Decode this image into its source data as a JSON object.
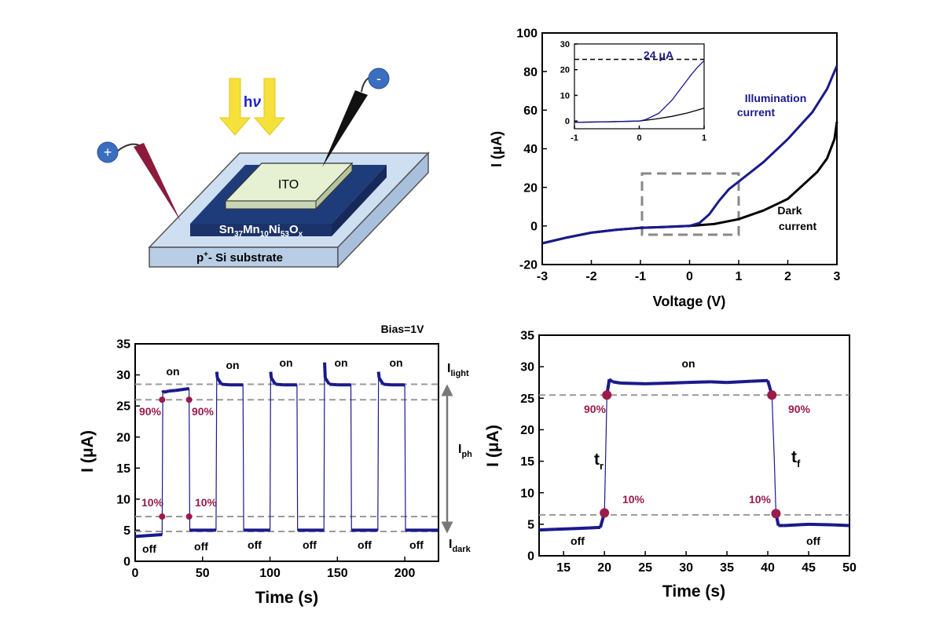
{
  "colors": {
    "dark": "#000000",
    "light": "#1a1a8c",
    "marker": "#9b1b4a",
    "grid": "#999999",
    "ito": "#e6f0d2",
    "film": "#1f3c7a",
    "substrate": "#cfdff2",
    "arrow": "#f5e13c",
    "probe_plus": "#8b1a3c",
    "electrode": "#3a6fc0"
  },
  "schematic": {
    "plus": "+",
    "minus": "-",
    "hv_h": "h",
    "hv_v": "ν",
    "ito": "ITO",
    "film": {
      "p1": "Sn",
      "s1": "37",
      "p2": "Mn",
      "s2": "10",
      "p3": "Ni",
      "s3": "53",
      "p4": "O",
      "s4": "x"
    },
    "substrate_base": "p",
    "substrate_sup": "+",
    "substrate_rest": "- Si substrate"
  },
  "chart_data": [
    {
      "id": "iv",
      "type": "line",
      "xlabel": "Voltage (V)",
      "ylabel": "I (μA)",
      "xlim": [
        -3,
        3
      ],
      "ylim": [
        -20,
        100
      ],
      "xticks": [
        -3,
        -2,
        -1,
        0,
        1,
        2,
        3
      ],
      "yticks": [
        -20,
        0,
        20,
        40,
        60,
        80,
        100
      ],
      "series": [
        {
          "name": "Dark current",
          "x": [
            -3,
            -2.5,
            -2,
            -1.5,
            -1,
            -0.5,
            0,
            0.5,
            1,
            1.5,
            2,
            2.3,
            2.6,
            2.8,
            2.95,
            3
          ],
          "y": [
            -9,
            -6,
            -3.5,
            -2,
            -1,
            -0.5,
            0,
            1,
            3.5,
            8,
            14,
            21,
            28,
            35,
            45,
            54
          ]
        },
        {
          "name": "Illumination current",
          "x": [
            -3,
            -2.5,
            -2,
            -1.5,
            -1,
            -0.5,
            0,
            0.2,
            0.4,
            0.6,
            0.8,
            1,
            1.5,
            2,
            2.5,
            2.8,
            3
          ],
          "y": [
            -9,
            -6,
            -3.5,
            -2,
            -1,
            -0.5,
            0,
            1.5,
            6,
            13,
            19,
            23,
            33,
            45,
            59,
            71,
            83
          ]
        }
      ],
      "labels": {
        "illum_1": "Illumination",
        "illum_2": "current",
        "dark_1": "Dark",
        "dark_2": "current"
      },
      "inset": {
        "xlim": [
          -1,
          1
        ],
        "ylim": [
          -3,
          30
        ],
        "xticks": [
          -1,
          0,
          1
        ],
        "yticks": [
          0,
          10,
          20,
          30
        ],
        "dashed_y": 24,
        "annotation": "24 μA",
        "series": [
          {
            "name": "Dark current",
            "x": [
              -1,
              -0.5,
              0,
              0.25,
              0.5,
              0.75,
              1
            ],
            "y": [
              -0.5,
              -0.3,
              0,
              0.8,
              1.8,
              3.2,
              5
            ]
          },
          {
            "name": "Illumination current",
            "x": [
              -1,
              -0.5,
              0,
              0.1,
              0.3,
              0.5,
              0.65,
              0.8,
              0.9,
              1
            ],
            "y": [
              -0.5,
              -0.3,
              0,
              0.6,
              3,
              8,
              13,
              18,
              21,
              23.5
            ]
          }
        ]
      }
    },
    {
      "id": "cycles",
      "type": "line",
      "xlabel": "Time (s)",
      "ylabel": "I (μA)",
      "xlim": [
        0,
        225
      ],
      "ylim": [
        0,
        35
      ],
      "xticks": [
        0,
        50,
        100,
        150,
        200
      ],
      "yticks": [
        0,
        5,
        10,
        15,
        20,
        25,
        30,
        35
      ],
      "bias": "Bias=1V",
      "series": [
        {
          "name": "Photocurrent",
          "x": [
            0,
            20,
            20.5,
            21,
            25,
            30,
            40,
            40.5,
            60,
            60.5,
            61,
            64,
            70,
            80,
            80.5,
            100,
            100.5,
            101,
            104,
            110,
            120,
            120.5,
            140,
            140.5,
            141,
            144,
            150,
            160,
            160.5,
            180,
            180.5,
            181,
            184,
            190,
            200,
            200.5,
            225
          ],
          "y": [
            4,
            4.3,
            27.5,
            27.2,
            27.4,
            27.5,
            27.8,
            5,
            5,
            30.5,
            29.5,
            28.5,
            28.4,
            28.4,
            5,
            5,
            30.5,
            29.5,
            28.5,
            28.4,
            28.4,
            5,
            5,
            32,
            29.5,
            28.5,
            28.4,
            28.4,
            5,
            5,
            30.5,
            29.5,
            28.5,
            28.4,
            28.4,
            5,
            5
          ]
        }
      ],
      "hlines": [
        28.5,
        26,
        7.2,
        4.8
      ],
      "markers": [
        {
          "x": 20,
          "y": 26
        },
        {
          "x": 20,
          "y": 7.2
        },
        {
          "x": 40,
          "y": 26
        },
        {
          "x": 40,
          "y": 7.2
        }
      ],
      "labels": {
        "on": "on",
        "off": "off",
        "p90": "90%",
        "p10": "10%",
        "I": "I",
        "light": "light",
        "ph": "ph",
        "dark": "dark"
      }
    },
    {
      "id": "zoom",
      "type": "line",
      "xlabel": "Time (s)",
      "ylabel": "I (μA)",
      "xlim": [
        12,
        50
      ],
      "ylim": [
        0,
        35
      ],
      "xticks": [
        15,
        20,
        25,
        30,
        35,
        40,
        45,
        50
      ],
      "yticks": [
        0,
        5,
        10,
        15,
        20,
        25,
        30,
        35
      ],
      "series": [
        {
          "name": "Photocurrent",
          "x": [
            12,
            14,
            16,
            18,
            19.5,
            20,
            20.3,
            20.6,
            21,
            22,
            25,
            28,
            30,
            33,
            35,
            38,
            40,
            40.5,
            40.8,
            41,
            41.3,
            42,
            45,
            48,
            50
          ],
          "y": [
            4.1,
            4.2,
            4.3,
            4.4,
            4.5,
            6.8,
            25.5,
            28,
            27.6,
            27.4,
            27.3,
            27.4,
            27.5,
            27.6,
            27.5,
            27.7,
            27.8,
            25.5,
            15,
            6.7,
            4.8,
            4.8,
            5,
            4.9,
            4.8
          ]
        }
      ],
      "hlines": [
        25.5,
        6.5
      ],
      "markers": [
        {
          "x": 20.3,
          "y": 25.5
        },
        {
          "x": 20,
          "y": 6.8
        },
        {
          "x": 40.5,
          "y": 25.5
        },
        {
          "x": 41,
          "y": 6.7
        }
      ],
      "labels": {
        "on": "on",
        "off": "off",
        "p90": "90%",
        "p10": "10%",
        "t": "t",
        "r": "r",
        "f": "f"
      }
    }
  ]
}
